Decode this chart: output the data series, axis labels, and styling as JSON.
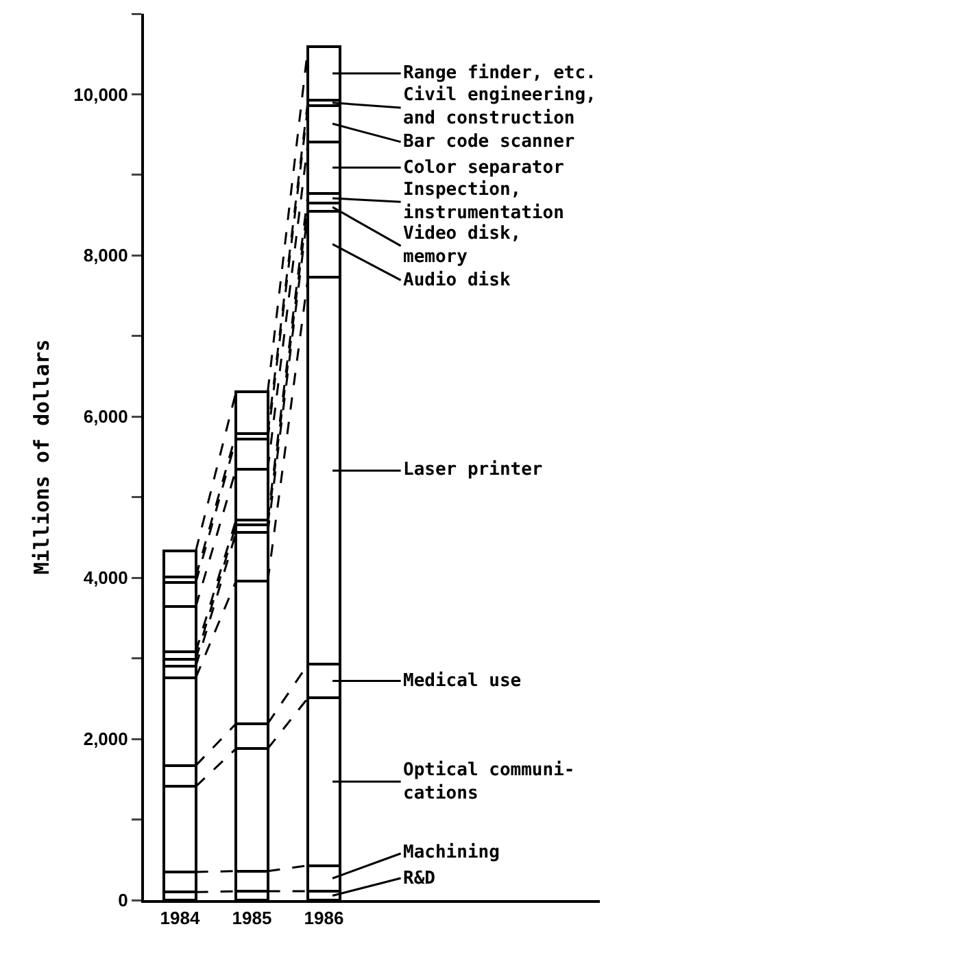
{
  "chart_data": {
    "type": "bar",
    "stacked": true,
    "legend": "right",
    "ylabel": "Millions of dollars",
    "categories": [
      "1984",
      "1985",
      "1986"
    ],
    "ylim": [
      0,
      11000
    ],
    "yticks": [
      0,
      {
        "value": 1000,
        "label": null
      },
      {
        "value": 2000,
        "label": "2,000"
      },
      {
        "value": 3000,
        "label": null
      },
      {
        "value": 4000,
        "label": "4,000"
      },
      {
        "value": 5000,
        "label": null
      },
      {
        "value": 6000,
        "label": "6,000"
      },
      {
        "value": 7000,
        "label": null
      },
      {
        "value": 8000,
        "label": "8,000"
      },
      {
        "value": 9000,
        "label": null
      },
      {
        "value": 10000,
        "label": "10,000"
      },
      {
        "value": 11000,
        "label": null
      }
    ],
    "series": [
      {
        "name": "R&D",
        "color": "#ffffff",
        "values": [
          100,
          110,
          110
        ]
      },
      {
        "name": "Machining",
        "color": "#ffffff",
        "values": [
          250,
          250,
          320
        ]
      },
      {
        "name": "Optical communi-\ncations",
        "color": "#ffffff",
        "values": [
          1060,
          1520,
          2080
        ]
      },
      {
        "name": "Medical use",
        "color": "#ffffff",
        "values": [
          260,
          310,
          420
        ]
      },
      {
        "name": "Laser printer",
        "color": "#ffffff",
        "values": [
          1090,
          1770,
          4800
        ]
      },
      {
        "name": "Audio disk",
        "color": "#ffffff",
        "values": [
          140,
          600,
          820
        ]
      },
      {
        "name": "Video disk,\nmemory",
        "color": "#ffffff",
        "values": [
          90,
          100,
          100
        ]
      },
      {
        "name": "Inspection,\ninstrumentation",
        "color": "#ffffff",
        "values": [
          90,
          60,
          120
        ]
      },
      {
        "name": "Color separator",
        "color": "#ffffff",
        "values": [
          560,
          630,
          640
        ]
      },
      {
        "name": "Bar code scanner",
        "color": "#ffffff",
        "values": [
          300,
          370,
          450
        ]
      },
      {
        "name": "Civil engineering,\nand construction",
        "color": "#ffffff",
        "values": [
          70,
          70,
          70
        ]
      },
      {
        "name": "Range finder, etc.",
        "color": "#ffffff",
        "values": [
          320,
          520,
          660
        ]
      }
    ]
  }
}
